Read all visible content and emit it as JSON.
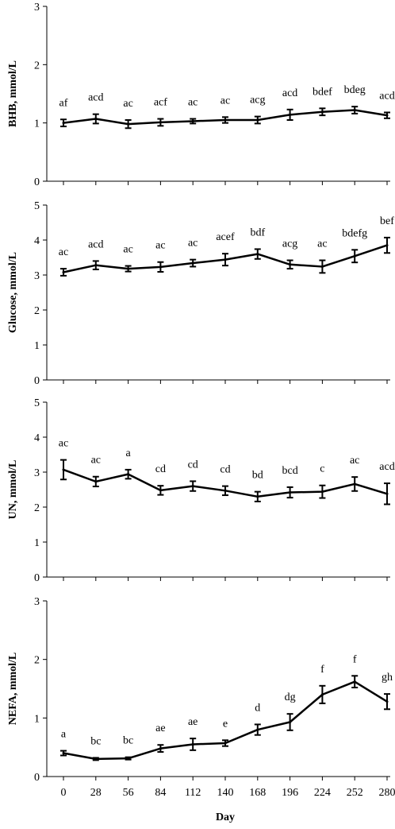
{
  "x_axis": {
    "label": "Day",
    "ticks": [
      0,
      28,
      56,
      84,
      112,
      140,
      168,
      196,
      224,
      252,
      280
    ]
  },
  "chart_data": [
    {
      "type": "line",
      "ylabel": "BHB, mmol/L",
      "ylim": [
        0,
        3
      ],
      "yticks": [
        0,
        1,
        2,
        3
      ],
      "x": [
        0,
        28,
        56,
        84,
        112,
        140,
        168,
        196,
        224,
        252,
        280
      ],
      "values": [
        1.0,
        1.07,
        0.98,
        1.01,
        1.03,
        1.05,
        1.05,
        1.14,
        1.19,
        1.22,
        1.13
      ],
      "errors": [
        0.06,
        0.08,
        0.07,
        0.06,
        0.04,
        0.05,
        0.06,
        0.09,
        0.06,
        0.06,
        0.05
      ],
      "labels": [
        "af",
        "acd",
        "ac",
        "acf",
        "ac",
        "ac",
        "acg",
        "acd",
        "bdef",
        "bdeg",
        "acd"
      ]
    },
    {
      "type": "line",
      "ylabel": "Glucose, mmol/L",
      "ylim": [
        0,
        5
      ],
      "yticks": [
        0,
        1,
        2,
        3,
        4,
        5
      ],
      "x": [
        0,
        28,
        56,
        84,
        112,
        140,
        168,
        196,
        224,
        252,
        280
      ],
      "values": [
        3.08,
        3.28,
        3.18,
        3.23,
        3.34,
        3.44,
        3.6,
        3.3,
        3.24,
        3.54,
        3.85
      ],
      "errors": [
        0.1,
        0.12,
        0.08,
        0.14,
        0.1,
        0.17,
        0.14,
        0.12,
        0.18,
        0.18,
        0.22
      ],
      "labels": [
        "ac",
        "acd",
        "ac",
        "ac",
        "ac",
        "acef",
        "bdf",
        "acg",
        "ac",
        "bdefg",
        "bef"
      ]
    },
    {
      "type": "line",
      "ylabel": "UN, mmol/L",
      "ylim": [
        0,
        5
      ],
      "yticks": [
        0,
        1,
        2,
        3,
        4,
        5
      ],
      "x": [
        0,
        28,
        56,
        84,
        112,
        140,
        168,
        196,
        224,
        252,
        280
      ],
      "values": [
        3.07,
        2.73,
        2.94,
        2.48,
        2.6,
        2.47,
        2.3,
        2.42,
        2.44,
        2.66,
        2.38
      ],
      "errors": [
        0.28,
        0.14,
        0.13,
        0.13,
        0.14,
        0.13,
        0.14,
        0.15,
        0.18,
        0.2,
        0.3
      ],
      "labels": [
        "ac",
        "ac",
        "a",
        "cd",
        "cd",
        "cd",
        "bd",
        "bcd",
        "c",
        "ac",
        "acd"
      ]
    },
    {
      "type": "line",
      "ylabel": "NEFA, mmol/L",
      "ylim": [
        0,
        3
      ],
      "yticks": [
        0,
        1,
        2,
        3
      ],
      "x": [
        0,
        28,
        56,
        84,
        112,
        140,
        168,
        196,
        224,
        252,
        280
      ],
      "values": [
        0.4,
        0.3,
        0.31,
        0.48,
        0.55,
        0.57,
        0.8,
        0.93,
        1.4,
        1.62,
        1.28
      ],
      "errors": [
        0.04,
        0.02,
        0.02,
        0.06,
        0.1,
        0.05,
        0.09,
        0.14,
        0.15,
        0.1,
        0.13
      ],
      "labels": [
        "a",
        "bc",
        "bc",
        "ae",
        "ae",
        "e",
        "d",
        "dg",
        "f",
        "f",
        "gh"
      ]
    }
  ]
}
